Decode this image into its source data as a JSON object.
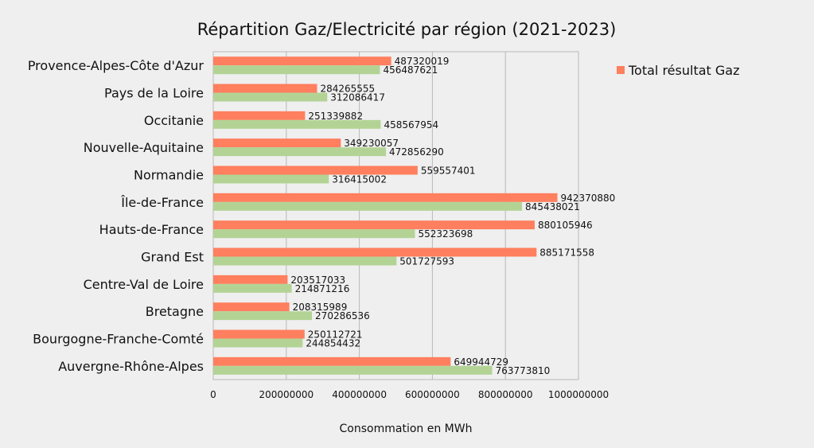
{
  "chart_data": {
    "type": "bar",
    "orientation": "horizontal",
    "title": "Répartition Gaz/Electricité par région (2021-2023)",
    "xlabel": "Consommation en MWh",
    "ylabel": "",
    "xlim": [
      0,
      1000000000
    ],
    "x_ticks": [
      "0",
      "200000000",
      "400000000",
      "600000000",
      "800000000",
      "1000000000"
    ],
    "x_tick_values": [
      0,
      200000000,
      400000000,
      600000000,
      800000000,
      1000000000
    ],
    "grid": true,
    "legend_position": "right",
    "categories": [
      "Auvergne-Rhône-Alpes",
      "Bourgogne-Franche-Comté",
      "Bretagne",
      "Centre-Val de Loire",
      "Grand Est",
      "Hauts-de-France",
      "Île-de-France",
      "Normandie",
      "Nouvelle-Aquitaine",
      "Occitanie",
      "Pays de la Loire",
      "Provence-Alpes-Côte d'Azur"
    ],
    "series": [
      {
        "name": "Total résultat Gaz",
        "color": "#ff7f5e",
        "values": [
          649944729,
          250112721,
          208315989,
          203517033,
          885171558,
          880105946,
          942370880,
          559557401,
          349230057,
          251339882,
          284265555,
          487320019
        ]
      },
      {
        "color": "#b3d395",
        "values": [
          763773810,
          244854432,
          270286536,
          214871216,
          501727593,
          552323698,
          845438021,
          316415002,
          472856290,
          458567954,
          312086417,
          456487621
        ]
      }
    ],
    "legend": [
      "Total résultat Gaz"
    ]
  }
}
